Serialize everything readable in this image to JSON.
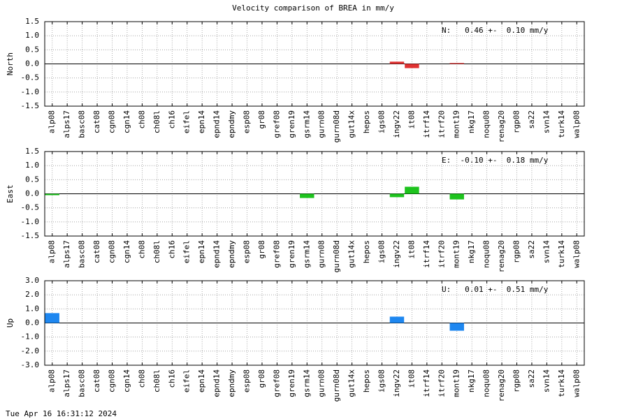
{
  "title": "Velocity comparison of BREA in mm/y",
  "timestamp": "Tue Apr 16 16:31:12 2024",
  "chart_data": [
    {
      "type": "bar",
      "y_label": "North",
      "annotation": "N:   0.46 +-  0.10 mm/y",
      "color": "#e03232",
      "categories": [
        "alp08",
        "alps17",
        "basc08",
        "cat08",
        "cgn08",
        "cgn14",
        "ch08",
        "ch08l",
        "ch16",
        "eifel",
        "epn14",
        "epnd14",
        "epndmy",
        "esp08",
        "gr08",
        "gref08",
        "gren19",
        "gsrm14",
        "gurn08",
        "gurn08d",
        "gut14x",
        "hepos",
        "igs08",
        "ingv22",
        "it08",
        "itrf14",
        "itrf20",
        "mont19",
        "nkg17",
        "noqu08",
        "renag20",
        "rgp08",
        "sa22",
        "svn14",
        "turk14",
        "walp08"
      ],
      "values": [
        null,
        null,
        null,
        null,
        null,
        null,
        null,
        null,
        null,
        null,
        null,
        null,
        null,
        null,
        null,
        null,
        null,
        null,
        null,
        null,
        null,
        null,
        null,
        0.08,
        -0.15,
        null,
        null,
        0.03,
        null,
        null,
        null,
        null,
        null,
        null,
        null,
        null
      ],
      "ylim": [
        -1.5,
        1.5
      ],
      "yticks": [
        1.5,
        {
          "value": 1,
          "label": "1.0"
        },
        0.5,
        {
          "value": 0,
          "label": "0.0"
        },
        -0.5,
        {
          "value": -1,
          "label": "-1.0"
        },
        -1.5
      ],
      "grid": true
    },
    {
      "type": "bar",
      "y_label": "East",
      "annotation": "E:  -0.10 +-  0.18 mm/y",
      "color": "#1ec31e",
      "categories": [
        "alp08",
        "alps17",
        "basc08",
        "cat08",
        "cgn08",
        "cgn14",
        "ch08",
        "ch08l",
        "ch16",
        "eifel",
        "epn14",
        "epnd14",
        "epndmy",
        "esp08",
        "gr08",
        "gref08",
        "gren19",
        "gsrm14",
        "gurn08",
        "gurn08d",
        "gut14x",
        "hepos",
        "igs08",
        "ingv22",
        "it08",
        "itrf14",
        "itrf20",
        "mont19",
        "nkg17",
        "noqu08",
        "renag20",
        "rgp08",
        "sa22",
        "svn14",
        "turk14",
        "walp08"
      ],
      "values": [
        -0.05,
        null,
        null,
        null,
        null,
        null,
        null,
        null,
        null,
        null,
        null,
        null,
        null,
        null,
        null,
        null,
        null,
        -0.15,
        null,
        null,
        null,
        null,
        null,
        -0.12,
        0.25,
        null,
        null,
        -0.2,
        null,
        null,
        null,
        null,
        null,
        null,
        null,
        null
      ],
      "ylim": [
        -1.5,
        1.5
      ],
      "yticks": [
        1.5,
        {
          "value": 1,
          "label": "1.0"
        },
        0.5,
        {
          "value": 0,
          "label": "0.0"
        },
        -0.5,
        {
          "value": -1,
          "label": "-1.0"
        },
        -1.5
      ],
      "grid": true
    },
    {
      "type": "bar",
      "y_label": "Up",
      "annotation": "U:   0.01 +-  0.51 mm/y",
      "color": "#1e87f0",
      "categories": [
        "alp08",
        "alps17",
        "basc08",
        "cat08",
        "cgn08",
        "cgn14",
        "ch08",
        "ch08l",
        "ch16",
        "eifel",
        "epn14",
        "epnd14",
        "epndmy",
        "esp08",
        "gr08",
        "gref08",
        "gren19",
        "gsrm14",
        "gurn08",
        "gurn08d",
        "gut14x",
        "hepos",
        "igs08",
        "ingv22",
        "it08",
        "itrf14",
        "itrf20",
        "mont19",
        "nkg17",
        "noqu08",
        "renag20",
        "rgp08",
        "sa22",
        "svn14",
        "turk14",
        "walp08"
      ],
      "values": [
        0.7,
        null,
        null,
        null,
        null,
        null,
        null,
        null,
        null,
        null,
        null,
        null,
        null,
        null,
        null,
        null,
        null,
        null,
        null,
        null,
        null,
        null,
        null,
        0.45,
        null,
        null,
        null,
        -0.55,
        null,
        null,
        null,
        null,
        null,
        null,
        null,
        null
      ],
      "ylim": [
        -3,
        3
      ],
      "yticks": [
        {
          "value": 3,
          "label": "3.0"
        },
        {
          "value": 2,
          "label": "2.0"
        },
        {
          "value": 1,
          "label": "1.0"
        },
        {
          "value": 0,
          "label": "0.0"
        },
        {
          "value": -1,
          "label": "-1.0"
        },
        {
          "value": -2,
          "label": "-2.0"
        },
        {
          "value": -3,
          "label": "-3.0"
        }
      ],
      "grid": true
    }
  ]
}
